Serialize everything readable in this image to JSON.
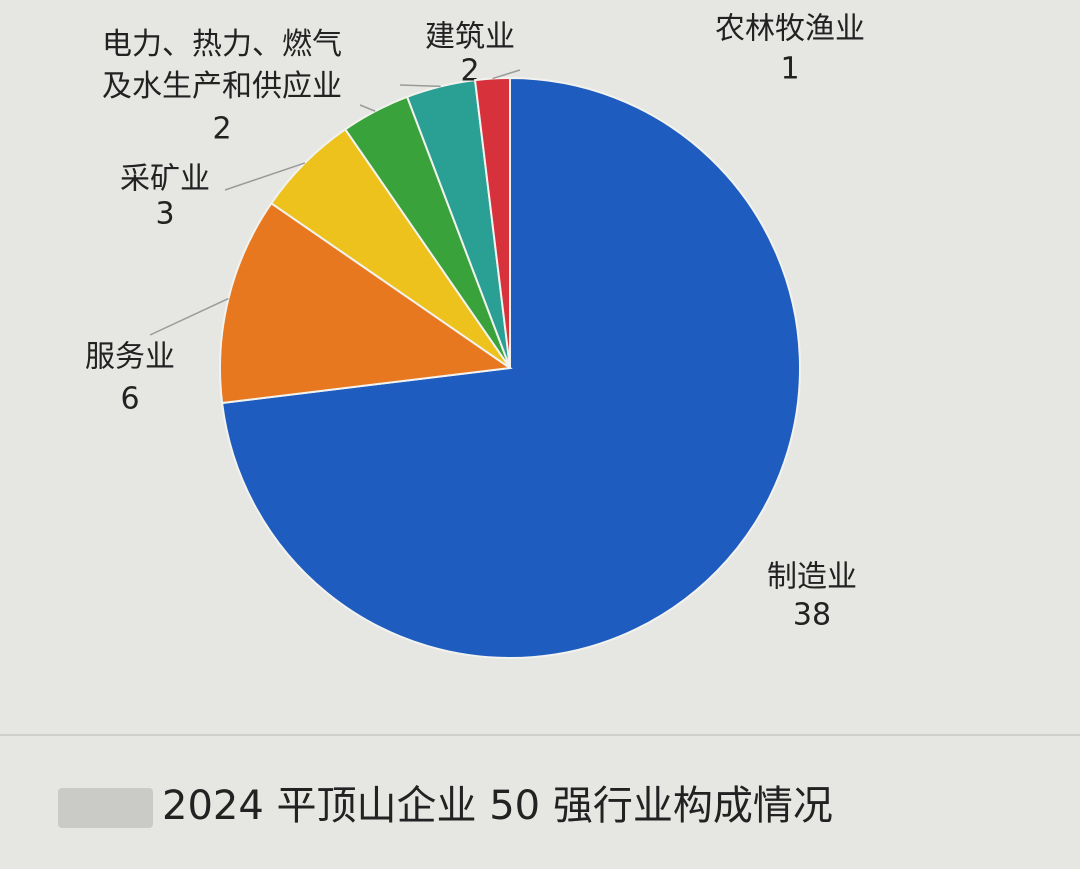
{
  "chart_data": {
    "type": "pie",
    "title": "2024 平顶山企业 50 强行业构成情况",
    "categories": [
      "制造业",
      "服务业",
      "采矿业",
      "电力、热力、燃气及水生产和供应业",
      "建筑业",
      "农林牧渔业"
    ],
    "values": [
      38,
      6,
      3,
      2,
      2,
      1
    ],
    "colors": [
      "#1f5cbf",
      "#e8781f",
      "#eec21c",
      "#3aa23b",
      "#2a9f93",
      "#d7313c"
    ]
  }
}
